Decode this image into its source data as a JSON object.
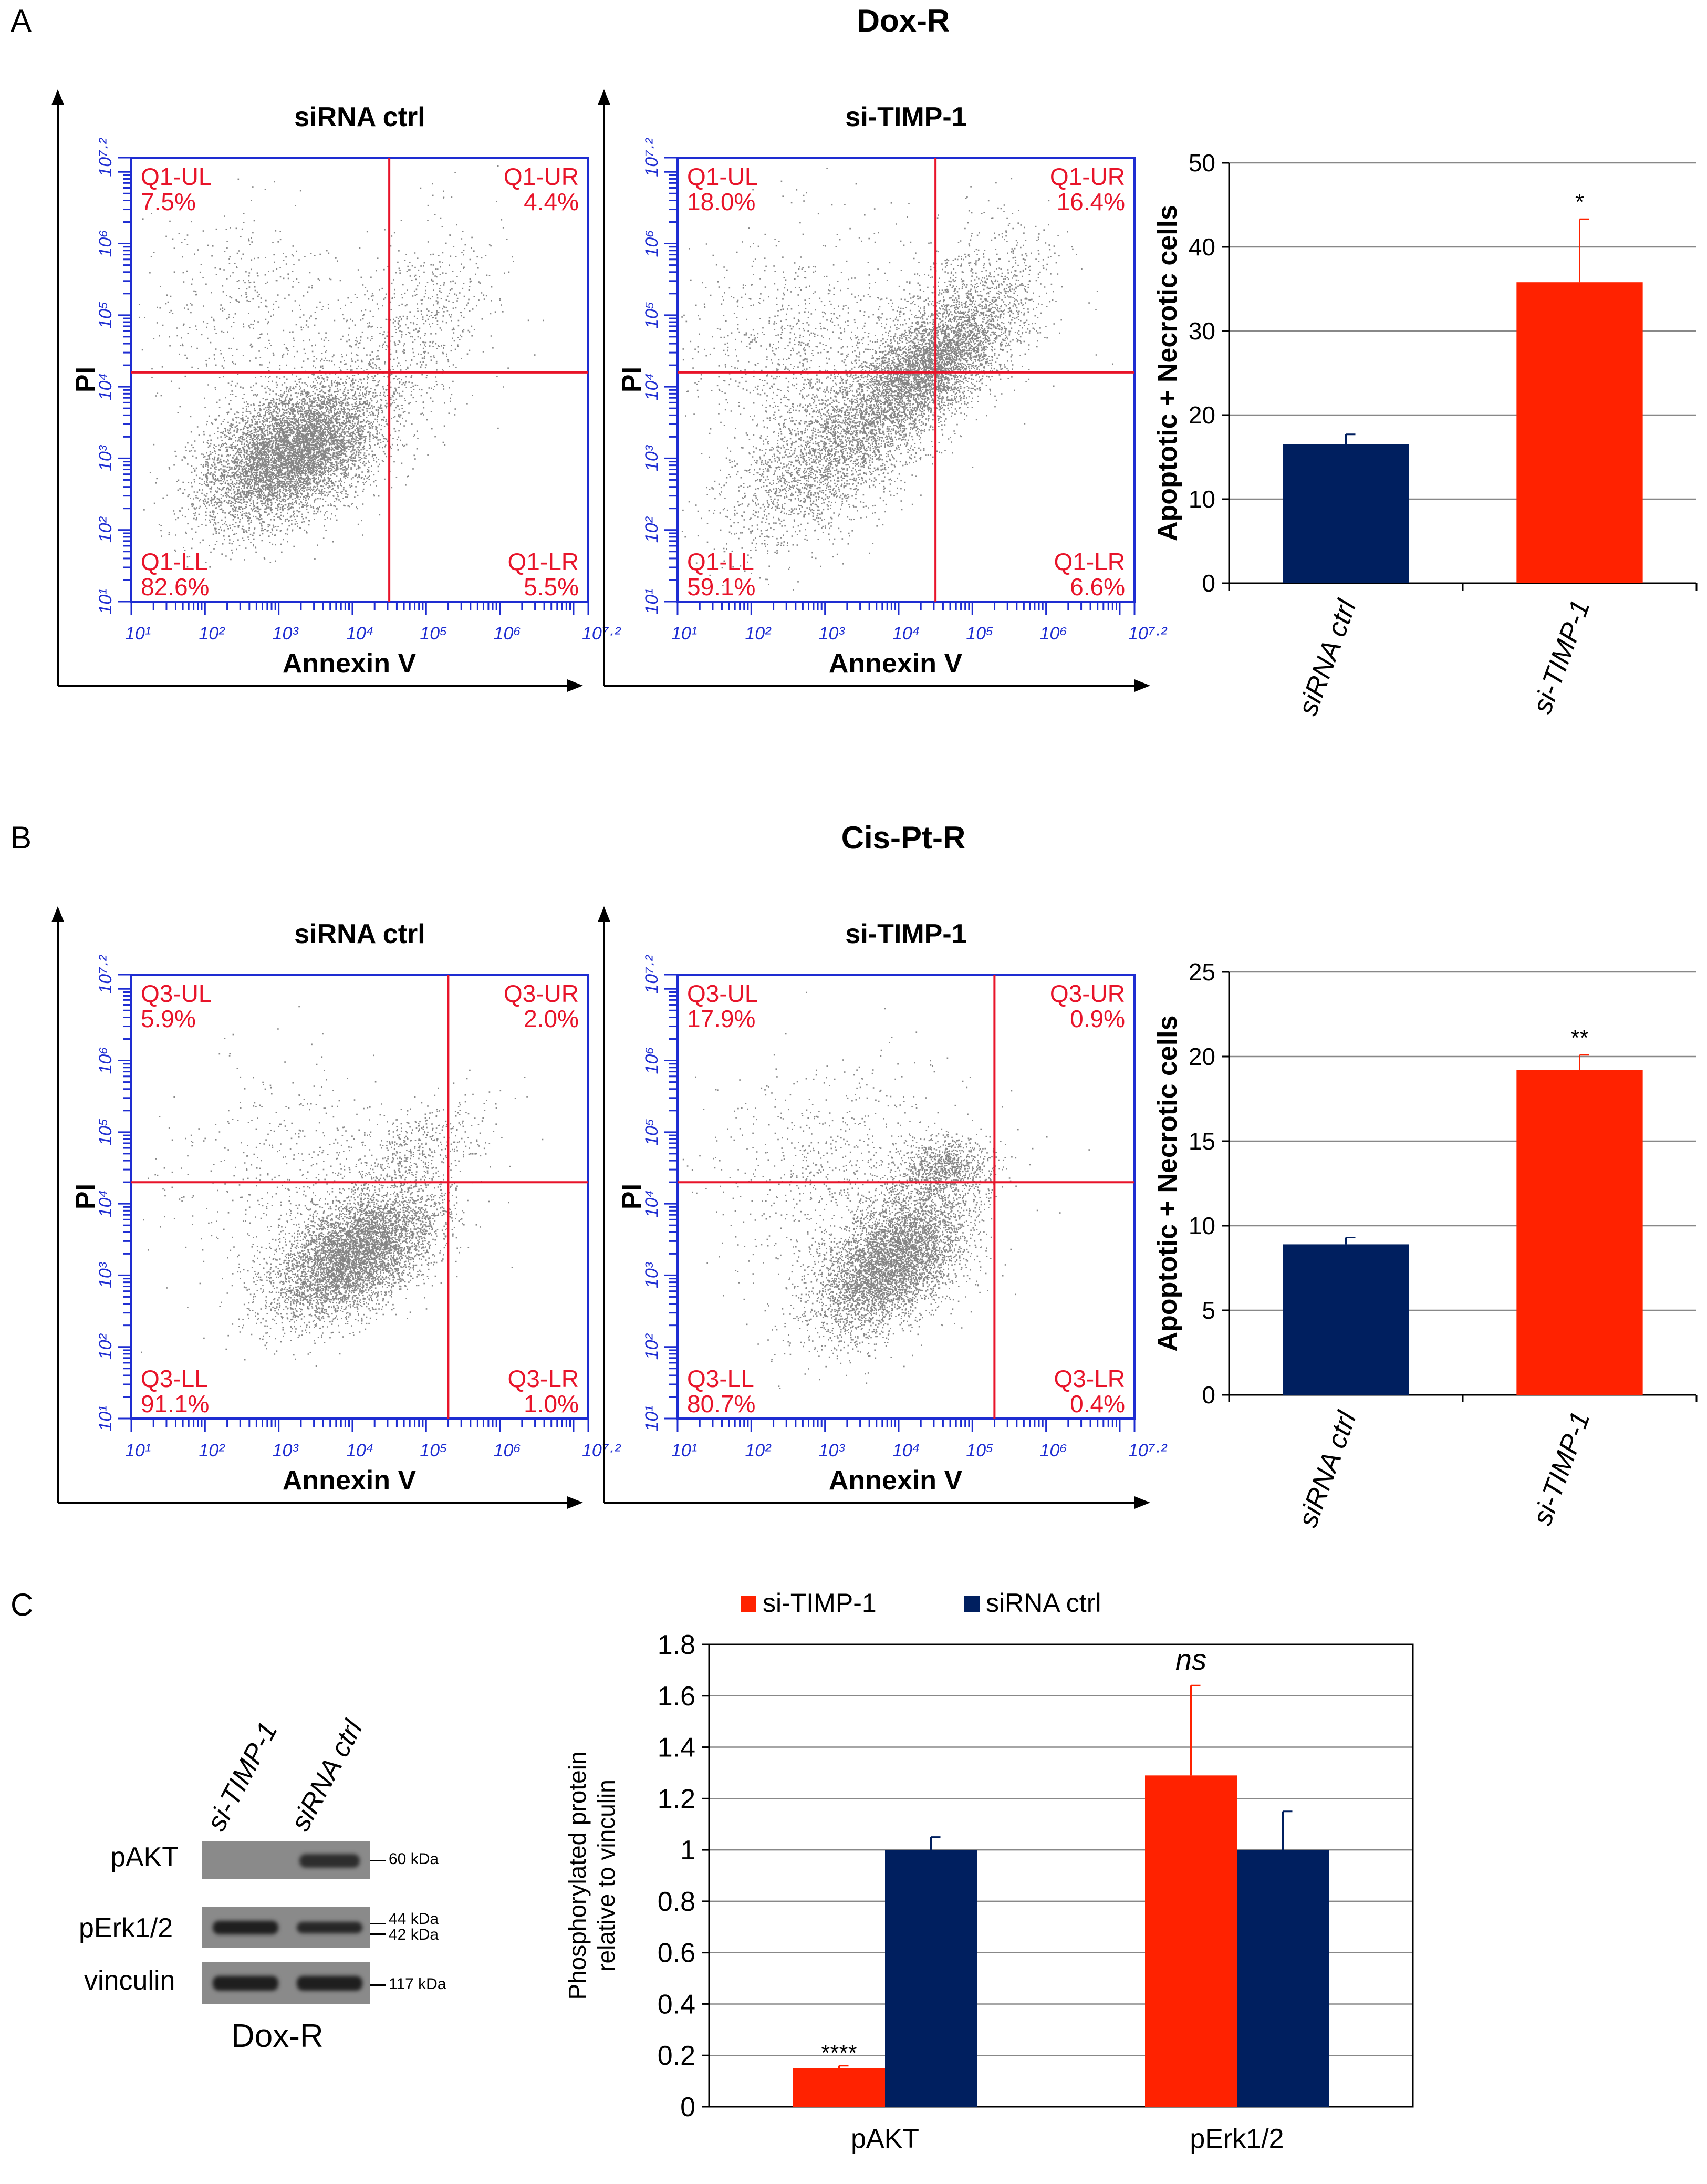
{
  "figure": {
    "panel_a": {
      "letter": "A",
      "title": "Dox-R"
    },
    "panel_b": {
      "letter": "B",
      "title": "Cis-Pt-R"
    },
    "panel_c": {
      "letter": "C"
    }
  },
  "flow_plots": [
    {
      "id": "a1",
      "title": "siRNA ctrl",
      "x_label": "Annexin V",
      "y_label": "PI",
      "x_ticks": [
        "10¹",
        "10²",
        "10³",
        "10⁴",
        "10⁵",
        "10⁶",
        "10⁷·²"
      ],
      "y_ticks": [
        "10¹",
        "10²",
        "10³",
        "10⁴",
        "10⁵",
        "10⁶",
        "10⁷·²"
      ],
      "quadrants": {
        "ul": {
          "name": "Q1-UL",
          "pct": "7.5%"
        },
        "ur": {
          "name": "Q1-UR",
          "pct": "4.4%"
        },
        "ll": {
          "name": "Q1-LL",
          "pct": "82.6%"
        },
        "lr": {
          "name": "Q1-LR",
          "pct": "5.5%"
        }
      },
      "gate": {
        "x_decade": 4.5,
        "y_decade": 4.2
      }
    },
    {
      "id": "a2",
      "title": "si-TIMP-1",
      "x_label": "Annexin V",
      "y_label": "PI",
      "x_ticks": [
        "10¹",
        "10²",
        "10³",
        "10⁴",
        "10⁵",
        "10⁶",
        "10⁷·²"
      ],
      "y_ticks": [
        "10¹",
        "10²",
        "10³",
        "10⁴",
        "10⁵",
        "10⁶",
        "10⁷·²"
      ],
      "quadrants": {
        "ul": {
          "name": "Q1-UL",
          "pct": "18.0%"
        },
        "ur": {
          "name": "Q1-UR",
          "pct": "16.4%"
        },
        "ll": {
          "name": "Q1-LL",
          "pct": "59.1%"
        },
        "lr": {
          "name": "Q1-LR",
          "pct": "6.6%"
        }
      },
      "gate": {
        "x_decade": 4.5,
        "y_decade": 4.2
      }
    },
    {
      "id": "b1",
      "title": "siRNA ctrl",
      "x_label": "Annexin V",
      "y_label": "PI",
      "x_ticks": [
        "10¹",
        "10²",
        "10³",
        "10⁴",
        "10⁵",
        "10⁶",
        "10⁷·²"
      ],
      "y_ticks": [
        "10¹",
        "10²",
        "10³",
        "10⁴",
        "10⁵",
        "10⁶",
        "10⁷·²"
      ],
      "quadrants": {
        "ul": {
          "name": "Q3-UL",
          "pct": "5.9%"
        },
        "ur": {
          "name": "Q3-UR",
          "pct": "2.0%"
        },
        "ll": {
          "name": "Q3-LL",
          "pct": "91.1%"
        },
        "lr": {
          "name": "Q3-LR",
          "pct": "1.0%"
        }
      },
      "gate": {
        "x_decade": 5.3,
        "y_decade": 4.3
      }
    },
    {
      "id": "b2",
      "title": "si-TIMP-1",
      "x_label": "Annexin V",
      "y_label": "PI",
      "x_ticks": [
        "10¹",
        "10²",
        "10³",
        "10⁴",
        "10⁵",
        "10⁶",
        "10⁷·²"
      ],
      "y_ticks": [
        "10¹",
        "10²",
        "10³",
        "10⁴",
        "10⁵",
        "10⁶",
        "10⁷·²"
      ],
      "quadrants": {
        "ul": {
          "name": "Q3-UL",
          "pct": "17.9%"
        },
        "ur": {
          "name": "Q3-UR",
          "pct": "0.9%"
        },
        "ll": {
          "name": "Q3-LL",
          "pct": "80.7%"
        },
        "lr": {
          "name": "Q3-LR",
          "pct": "0.4%"
        }
      },
      "gate": {
        "x_decade": 5.3,
        "y_decade": 4.3
      }
    }
  ],
  "chart_data": [
    {
      "id": "a3",
      "type": "bar",
      "title": "",
      "categories": [
        "siRNA ctrl",
        "si-TIMP-1"
      ],
      "values": [
        16.5,
        35.8
      ],
      "errors": [
        1.2,
        7.5
      ],
      "colors": [
        "#001f5f",
        "#ff2200"
      ],
      "ylabel": "Apoptotic + Necrotic cells",
      "xlabel": "",
      "ylim": [
        0,
        50
      ],
      "yticks": [
        "0",
        "10",
        "20",
        "30",
        "40",
        "50"
      ],
      "grid": true,
      "significance": [
        "",
        "*"
      ]
    },
    {
      "id": "b3",
      "type": "bar",
      "title": "",
      "categories": [
        "siRNA ctrl",
        "si-TIMP-1"
      ],
      "values": [
        8.9,
        19.2
      ],
      "errors": [
        0.4,
        0.9
      ],
      "colors": [
        "#001f5f",
        "#ff2200"
      ],
      "ylabel": "Apoptotic + Necrotic cells",
      "xlabel": "",
      "ylim": [
        0,
        25
      ],
      "yticks": [
        "0",
        "5",
        "10",
        "15",
        "20",
        "25"
      ],
      "grid": true,
      "significance": [
        "",
        "**"
      ]
    },
    {
      "id": "c2",
      "type": "bar",
      "title": "",
      "categories": [
        "pAKT",
        "pErk1/2"
      ],
      "series": [
        {
          "name": "si-TIMP-1",
          "color": "#ff2200",
          "values": [
            0.15,
            1.29
          ],
          "errors": [
            0.01,
            0.35
          ]
        },
        {
          "name": "siRNA ctrl",
          "color": "#001f5f",
          "values": [
            1.0,
            1.0
          ],
          "errors": [
            0.05,
            0.15
          ]
        }
      ],
      "ylabel": "Phosphorylated protein relative to vinculin",
      "ylabel_lines": [
        "Phosphorylated protein",
        "relative to vinculin"
      ],
      "xlabel": "",
      "ylim": [
        0,
        1.8
      ],
      "yticks": [
        "0",
        "0.2",
        "0.4",
        "0.6",
        "0.8",
        "1",
        "1.2",
        "1.4",
        "1.6",
        "1.8"
      ],
      "grid": true,
      "legend": "top",
      "significance": [
        "****",
        "ns"
      ]
    }
  ],
  "blot": {
    "lanes": [
      "si-TIMP-1",
      "siRNA ctrl"
    ],
    "rows": [
      {
        "protein": "pAKT",
        "kda": "60 kDa"
      },
      {
        "protein": "pErk1/2",
        "kda": "44 kDa",
        "kda2": "42 kDa"
      },
      {
        "protein": "vinculin",
        "kda": "117 kDa"
      }
    ],
    "caption": "Dox-R"
  }
}
